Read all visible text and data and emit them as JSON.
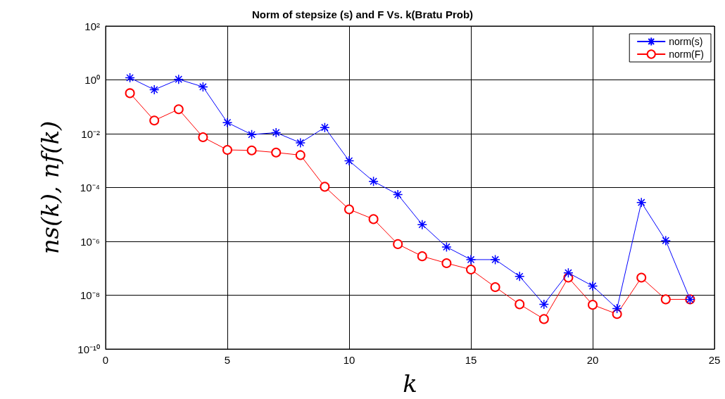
{
  "chart_data": {
    "type": "line",
    "title": "Norm of stepsize (s) and F Vs. k(Bratu Prob)",
    "xlabel": "k",
    "ylabel": "ns(k), nf(k)",
    "x": [
      1,
      2,
      3,
      4,
      5,
      6,
      7,
      8,
      9,
      10,
      11,
      12,
      13,
      14,
      15,
      16,
      17,
      18,
      19,
      20,
      21,
      22,
      23,
      24
    ],
    "series": [
      {
        "name": "norm(s)",
        "color": "#0000ff",
        "marker": "cross",
        "values": [
          1.2,
          0.43,
          1.05,
          0.55,
          0.026,
          0.0093,
          0.011,
          0.0046,
          0.017,
          0.00098,
          0.00017,
          5.5e-05,
          4.2e-06,
          6.2e-07,
          2.1e-07,
          2.1e-07,
          5e-08,
          4.6e-09,
          6.8e-08,
          2.2e-08,
          3.2e-09,
          2.8e-05,
          1.07e-06,
          7e-09
        ]
      },
      {
        "name": "norm(F)",
        "color": "#ff0000",
        "marker": "circle",
        "values": [
          0.32,
          0.031,
          0.081,
          0.0074,
          0.0025,
          0.0024,
          0.002,
          0.0016,
          0.000107,
          1.55e-05,
          6.7e-06,
          7.9e-07,
          2.8e-07,
          1.55e-07,
          9e-08,
          2e-08,
          4.6e-09,
          1.3e-09,
          4.5e-08,
          4.4e-09,
          2e-09,
          4.5e-08,
          7e-09,
          7e-09
        ]
      }
    ],
    "xlim": [
      0,
      25
    ],
    "xticks": [
      0,
      5,
      10,
      15,
      20,
      25
    ],
    "log": "y",
    "ylim": [
      1e-10,
      100
    ],
    "yticks": [
      {
        "value": 1e-10,
        "label": "10⁻¹⁰"
      },
      {
        "value": 1e-08,
        "label": "10⁻⁸"
      },
      {
        "value": 1e-06,
        "label": "10⁻⁶"
      },
      {
        "value": 0.0001,
        "label": "10⁻⁴"
      },
      {
        "value": 0.01,
        "label": "10⁻²"
      },
      {
        "value": 1,
        "label": "10⁰"
      },
      {
        "value": 100,
        "label": "10²"
      }
    ],
    "grid": true,
    "legend": "top right",
    "line_style": "solid"
  }
}
